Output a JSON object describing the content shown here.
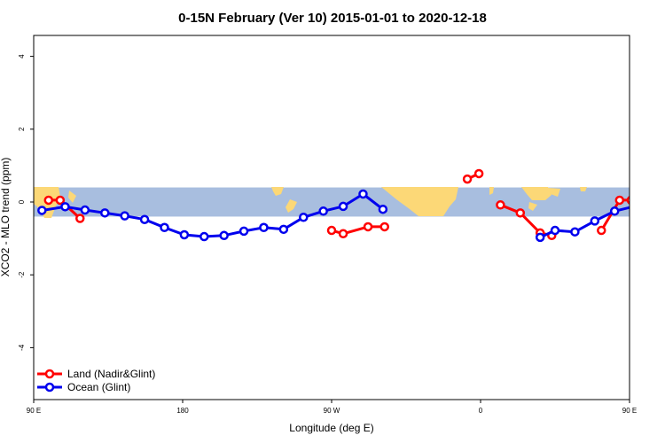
{
  "chart_data": {
    "type": "line",
    "title": "0-15N February (Ver 10)   2015-01-01 to 2020-12-18",
    "xlabel": "Longitude (deg E)",
    "ylabel": "XCO2 - MLO trend (ppm)",
    "xlim": [
      90,
      450
    ],
    "ylim": [
      -5.5,
      4.6
    ],
    "x_ticks": [
      {
        "value": 90,
        "label": "90 E"
      },
      {
        "value": 180,
        "label": "180"
      },
      {
        "value": 270,
        "label": "90 W"
      },
      {
        "value": 360,
        "label": "0"
      },
      {
        "value": 450,
        "label": "90 E"
      },
      {
        "value": 540,
        "label": "180"
      }
    ],
    "y_ticks": [
      {
        "value": -4,
        "label": "-4"
      },
      {
        "value": -2,
        "label": "-2"
      },
      {
        "value": 0,
        "label": "0"
      },
      {
        "value": 2,
        "label": "2"
      },
      {
        "value": 4,
        "label": "4"
      }
    ],
    "legend_position": "bottom-left",
    "series": [
      {
        "name": "Land (Nadir&Glint)",
        "color": "#ff0000",
        "segments": [
          [
            [
              99,
              0.05
            ],
            [
              106,
              0.05
            ],
            [
              118,
              -0.45
            ]
          ],
          [
            [
              270,
              -0.78
            ],
            [
              277,
              -0.87
            ],
            [
              292,
              -0.68
            ],
            [
              302,
              -0.68
            ]
          ],
          [
            [
              352,
              0.63
            ],
            [
              359,
              0.78
            ]
          ],
          [
            [
              372,
              -0.08
            ],
            [
              384,
              -0.3
            ],
            [
              396,
              -0.85
            ],
            [
              403,
              -0.92
            ]
          ],
          [
            [
              433,
              -0.78
            ],
            [
              444,
              0.05
            ],
            [
              451,
              0.05
            ],
            [
              463,
              -0.45
            ]
          ]
        ]
      },
      {
        "name": "Ocean (Glint)",
        "color": "#0000ee",
        "segments": [
          [
            [
              95,
              -0.23
            ],
            [
              109,
              -0.13
            ],
            [
              121,
              -0.22
            ],
            [
              133,
              -0.3
            ],
            [
              145,
              -0.38
            ],
            [
              157,
              -0.48
            ],
            [
              169,
              -0.7
            ],
            [
              181,
              -0.9
            ],
            [
              193,
              -0.95
            ],
            [
              205,
              -0.92
            ],
            [
              217,
              -0.8
            ],
            [
              229,
              -0.7
            ],
            [
              241,
              -0.75
            ],
            [
              253,
              -0.42
            ],
            [
              265,
              -0.25
            ],
            [
              277,
              -0.12
            ],
            [
              289,
              0.22
            ],
            [
              301,
              -0.2
            ]
          ],
          [
            [
              396,
              -0.97
            ],
            [
              405,
              -0.78
            ],
            [
              417,
              -0.82
            ],
            [
              429,
              -0.52
            ],
            [
              441,
              -0.25
            ],
            [
              453,
              -0.12
            ],
            [
              465,
              -0.2
            ],
            [
              477,
              -0.28
            ],
            [
              489,
              -0.38
            ],
            [
              501,
              -0.48
            ]
          ]
        ]
      }
    ],
    "background_band": {
      "y_range": [
        -0.4,
        0.4
      ],
      "ocean_color": "#a8bedf",
      "land_color": "#fcd877"
    }
  }
}
